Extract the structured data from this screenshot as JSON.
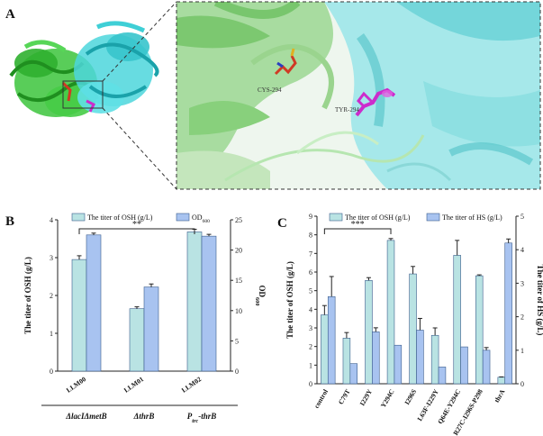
{
  "panel_a": {
    "letter": "A",
    "residue_labels": [
      "CYS-294",
      "TYR-294"
    ],
    "colors": {
      "chain_green": "#3cc43c",
      "chain_cyan": "#4cd6dc",
      "cys": "#d03a24",
      "tyr": "#cc2ccc"
    }
  },
  "colors": {
    "osh": "#b9e3e3",
    "od": "#a8c3f0",
    "hs": "#a8c3f0",
    "edge": "#3a5c8c"
  },
  "chart_data": [
    {
      "panel": "B",
      "type": "bar",
      "categories": [
        "LLM00",
        "LLM01",
        "LLM02"
      ],
      "group_labels": [
        "ΔlacIΔmetB",
        "ΔthrB",
        "P_trc-thrB"
      ],
      "series": [
        {
          "name": "The titer of OSH (g/L)",
          "axis": "left",
          "values": [
            2.95,
            1.65,
            3.68
          ],
          "errors": [
            0.1,
            0.05,
            0.07
          ]
        },
        {
          "name": "OD600",
          "axis": "right",
          "values": [
            22.5,
            13.9,
            22.3
          ],
          "errors": [
            0.3,
            0.5,
            0.3
          ]
        }
      ],
      "ylabel": "The titer of OSH (g/L)",
      "y2label": "OD600",
      "ylim": [
        0,
        4
      ],
      "y2lim": [
        0,
        25
      ],
      "yticks": [
        0,
        1,
        2,
        3,
        4
      ],
      "y2ticks": [
        0,
        5,
        10,
        15,
        20,
        25
      ],
      "significance": {
        "label": "**",
        "between": [
          "LLM00",
          "LLM02"
        ]
      },
      "legend": "top"
    },
    {
      "panel": "C",
      "type": "bar",
      "categories": [
        "control",
        "C79T",
        "I229Y",
        "Y294C",
        "I296S",
        "L63F-I229Y",
        "Q64E-Y294C",
        "R27C-I296S-P298",
        "thrA"
      ],
      "series": [
        {
          "name": "The titer of OSH (g/L)",
          "axis": "left",
          "values": [
            3.7,
            2.45,
            5.55,
            7.7,
            5.9,
            2.6,
            6.9,
            5.8,
            0.35
          ],
          "errors": [
            0.5,
            0.3,
            0.15,
            0.1,
            0.4,
            0.4,
            0.8,
            0.05,
            0.02
          ]
        },
        {
          "name": "The titer of HS (g/L)",
          "axis": "right",
          "values": [
            2.6,
            0.6,
            1.55,
            1.15,
            1.6,
            0.5,
            1.1,
            1.0,
            4.2
          ],
          "errors": [
            0.6,
            0.0,
            0.12,
            0.0,
            0.35,
            0.0,
            0.0,
            0.08,
            0.12
          ]
        }
      ],
      "ylabel": "The titer of OSH (g/L)",
      "y2label": "The titer of HS (g/L)",
      "ylim": [
        0,
        9
      ],
      "y2lim": [
        0,
        5
      ],
      "yticks": [
        0,
        1,
        2,
        3,
        4,
        5,
        6,
        7,
        8,
        9
      ],
      "y2ticks": [
        0,
        1,
        2,
        3,
        4,
        5
      ],
      "significance": {
        "label": "***",
        "between": [
          "control",
          "Y294C"
        ]
      },
      "legend": "top"
    }
  ]
}
